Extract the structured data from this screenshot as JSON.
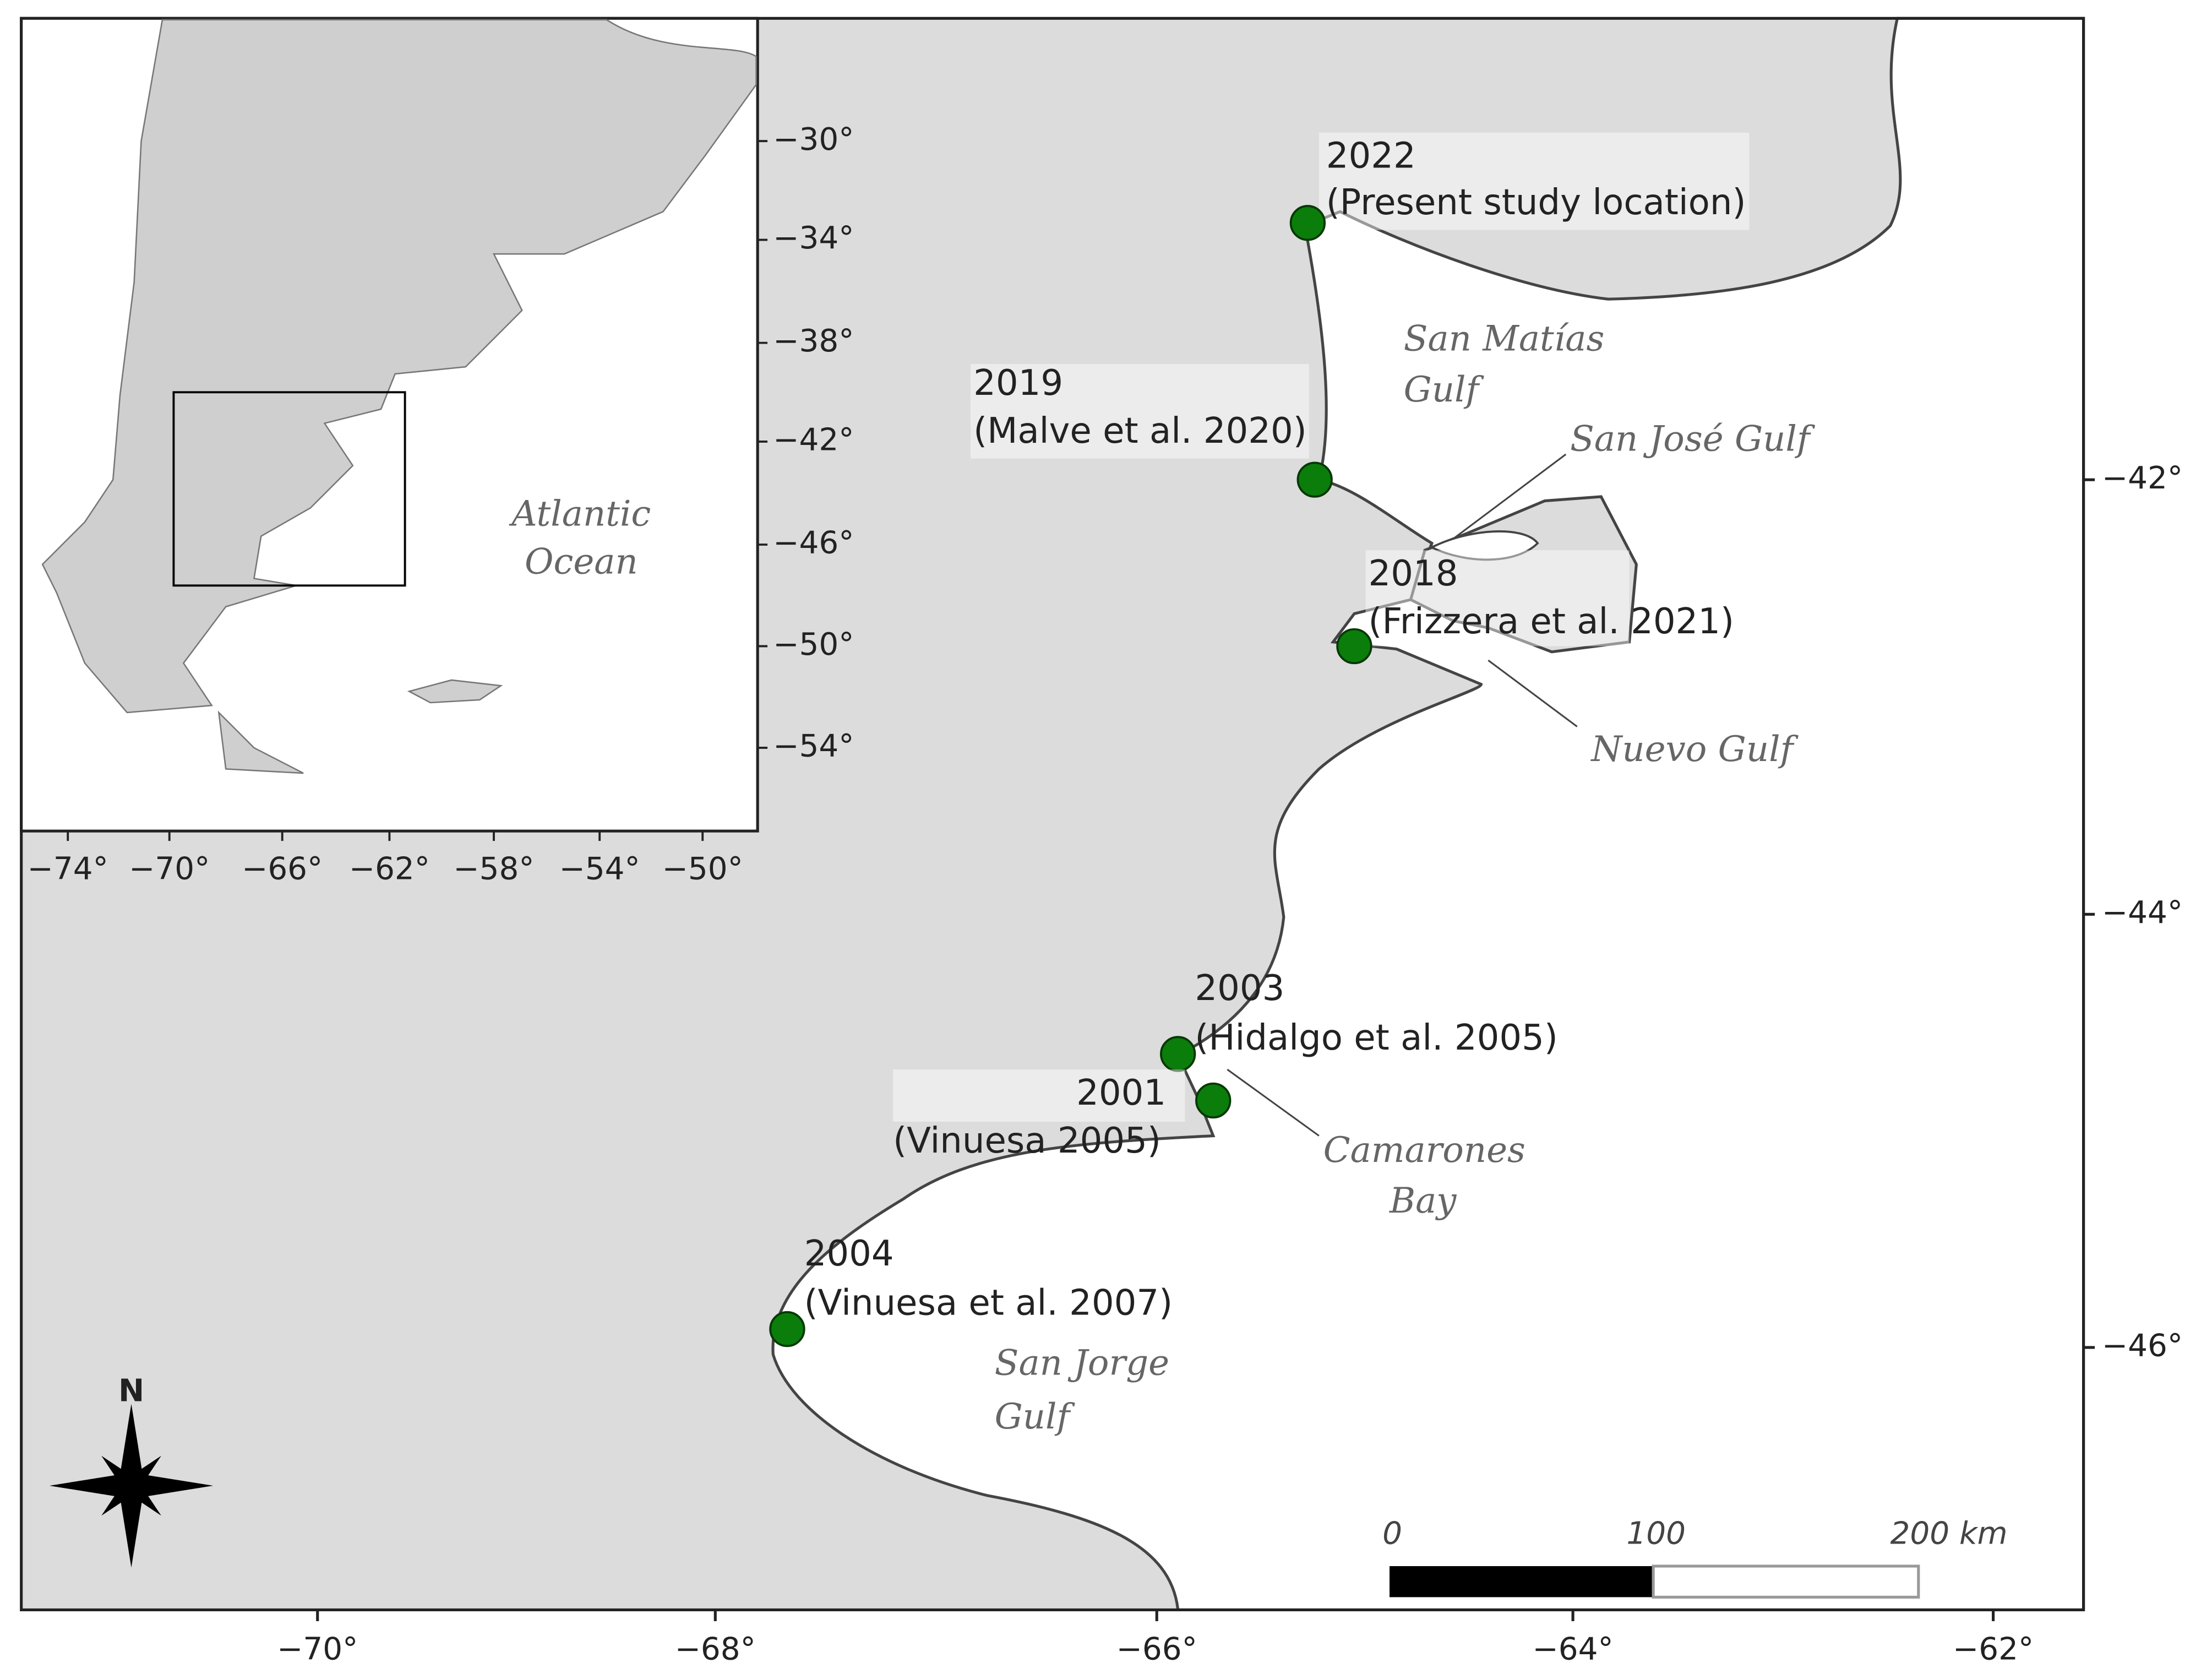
{
  "main": {
    "lon_ticks": [
      "−70°",
      "−68°",
      "−66°",
      "−64°",
      "−62°"
    ],
    "lat_ticks": [
      "−42°",
      "−44°",
      "−46°"
    ]
  },
  "inset": {
    "lat_ticks": [
      "−30°",
      "−34°",
      "−38°",
      "−42°",
      "−46°",
      "−50°",
      "−54°"
    ],
    "lon_ticks": [
      "−74°",
      "−70°",
      "−66°",
      "−62°",
      "−58°",
      "−54°",
      "−50°"
    ],
    "ocean_label": [
      "Atlantic",
      "Ocean"
    ]
  },
  "sites": [
    {
      "year": "2022",
      "reference": "(Present study location)"
    },
    {
      "year": "2019",
      "reference": "(Malve et al. 2020)"
    },
    {
      "year": "2018",
      "reference": "(Frizzera et al. 2021)"
    },
    {
      "year": "2003",
      "reference": "(Hidalgo et al. 2005)"
    },
    {
      "year": "2001",
      "reference": "(Vinuesa 2005)"
    },
    {
      "year": "2004",
      "reference": "(Vinuesa et al. 2007)"
    }
  ],
  "water_bodies": [
    {
      "lines": [
        "San Matías",
        "Gulf"
      ]
    },
    {
      "lines": [
        "San José Gulf"
      ]
    },
    {
      "lines": [
        "Nuevo Gulf"
      ]
    },
    {
      "lines": [
        "Camarones",
        "Bay"
      ]
    },
    {
      "lines": [
        "San Jorge",
        "Gulf"
      ]
    }
  ],
  "scale_bar": {
    "labels": [
      "0",
      "100",
      "200 km"
    ]
  },
  "compass": "N"
}
